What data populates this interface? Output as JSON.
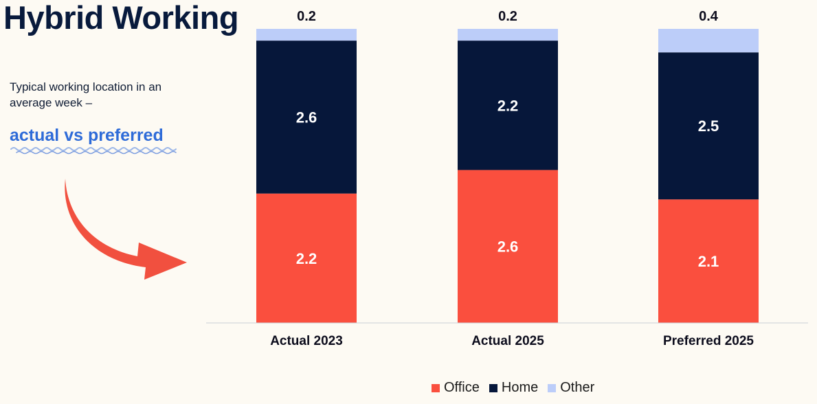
{
  "page": {
    "title": "Hybrid Working",
    "subtitle": "Typical working location in an average week –",
    "highlight": "actual vs preferred"
  },
  "colors": {
    "background": "#fdfaf3",
    "title": "#081a3c",
    "highlight": "#2e6bd8",
    "arrow": "#f1503f"
  },
  "chart_data": {
    "type": "bar",
    "stacked": true,
    "categories": [
      "Actual 2023",
      "Actual 2025",
      "Preferred 2025"
    ],
    "series": [
      {
        "name": "Office",
        "color": "#fa4f3e",
        "values": [
          2.2,
          2.6,
          2.1
        ]
      },
      {
        "name": "Home",
        "color": "#06173a",
        "values": [
          2.6,
          2.2,
          2.5
        ]
      },
      {
        "name": "Other",
        "color": "#bccdf9",
        "values": [
          0.2,
          0.2,
          0.4
        ]
      }
    ],
    "top_labels": [
      "0.2",
      "0.2",
      "0.4"
    ],
    "ylim": [
      0,
      5
    ],
    "grid": false,
    "legend_position": "bottom"
  }
}
